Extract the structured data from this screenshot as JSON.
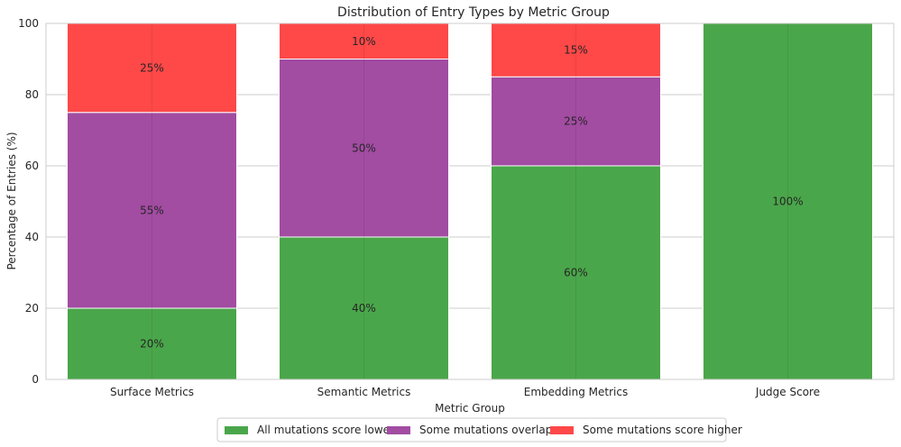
{
  "chart_data": {
    "type": "bar",
    "stacked": true,
    "title": "Distribution of Entry Types by Metric Group",
    "xlabel": "Metric Group",
    "ylabel": "Percentage of Entries (%)",
    "ylim": [
      0,
      100
    ],
    "yticks": [
      0,
      20,
      40,
      60,
      80,
      100
    ],
    "grid": true,
    "legend_position": "bottom-center",
    "categories": [
      "Surface Metrics",
      "Semantic Metrics",
      "Embedding Metrics",
      "Judge Score"
    ],
    "series": [
      {
        "name": "All mutations score lower",
        "color": "#4aa64a",
        "values": [
          20,
          40,
          60,
          100
        ]
      },
      {
        "name": "Some mutations overlap",
        "color": "#a24ca2",
        "values": [
          55,
          50,
          25,
          0
        ]
      },
      {
        "name": "Some mutations score higher",
        "color": "#ff4848",
        "values": [
          25,
          10,
          15,
          0
        ]
      }
    ]
  }
}
